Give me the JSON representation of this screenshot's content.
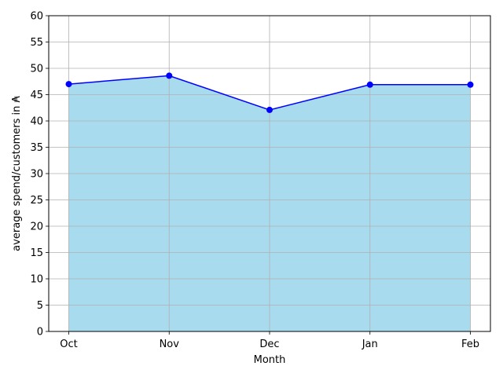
{
  "chart_data": {
    "type": "area",
    "categories": [
      "Oct",
      "Nov",
      "Dec",
      "Jan",
      "Feb"
    ],
    "series": [
      {
        "values": [
          47.0,
          48.6,
          42.1,
          46.9,
          46.9
        ]
      }
    ],
    "xlabel": "Month",
    "ylabel": "average spend/customers in ₳",
    "ylim": [
      0,
      60
    ],
    "yticks": [
      0,
      5,
      10,
      15,
      20,
      25,
      30,
      35,
      40,
      45,
      50,
      55,
      60
    ],
    "grid": true,
    "markers": "circle",
    "colors": {
      "line": "#0000ff",
      "marker": "#0000ff",
      "fill": "#a8dbee",
      "grid": "#b0b0b0"
    }
  }
}
